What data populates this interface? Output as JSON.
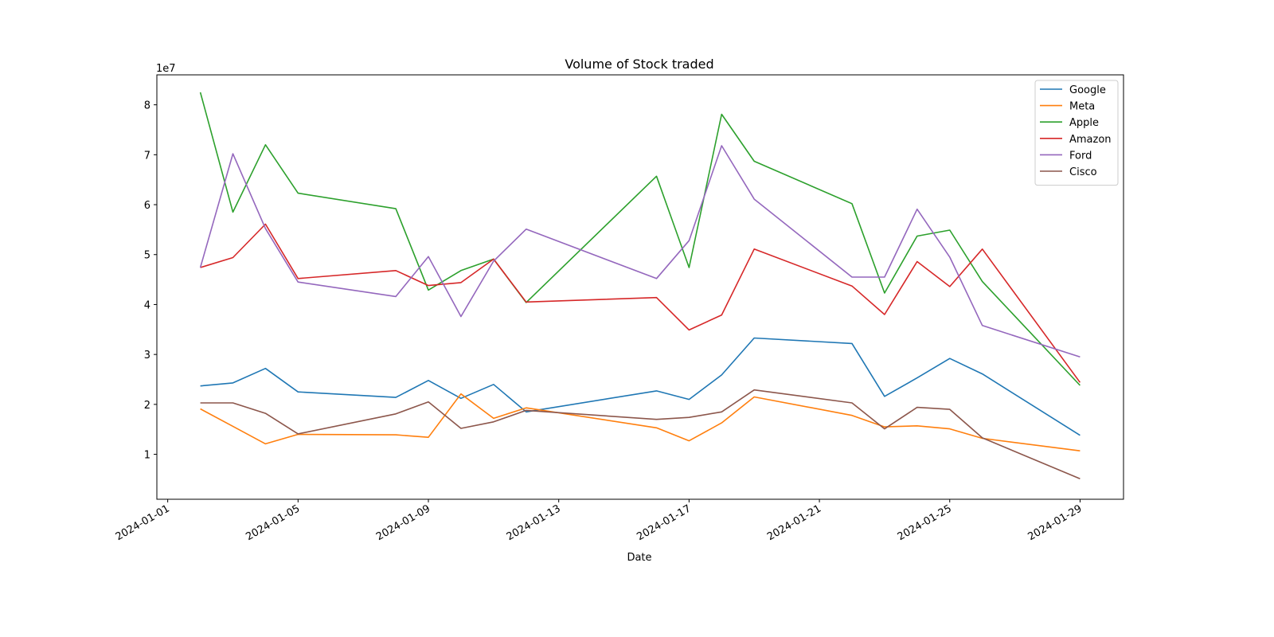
{
  "chart_data": {
    "type": "line",
    "title": "Volume of Stock traded",
    "xlabel": "Date",
    "ylabel": "",
    "y_scale_label": "1e7",
    "y_unit_multiplier": 10000000,
    "ylim": [
      1000000,
      86000000
    ],
    "xlim": [
      "2023-12-31T16:00",
      "2024-01-30T08:00"
    ],
    "x_ticks": [
      "2024-01-01",
      "2024-01-05",
      "2024-01-09",
      "2024-01-13",
      "2024-01-17",
      "2024-01-21",
      "2024-01-25",
      "2024-01-29"
    ],
    "y_ticks": [
      1,
      2,
      3,
      4,
      5,
      6,
      7,
      8
    ],
    "legend_position": "top-right",
    "grid": false,
    "x": [
      "2024-01-02",
      "2024-01-03",
      "2024-01-04",
      "2024-01-05",
      "2024-01-08",
      "2024-01-09",
      "2024-01-10",
      "2024-01-11",
      "2024-01-12",
      "2024-01-16",
      "2024-01-17",
      "2024-01-18",
      "2024-01-19",
      "2024-01-22",
      "2024-01-23",
      "2024-01-24",
      "2024-01-25",
      "2024-01-26",
      "2024-01-29"
    ],
    "series": [
      {
        "name": "Google",
        "color": "#1f77b4",
        "values": [
          23700000,
          24300000,
          27200000,
          22500000,
          21400000,
          24800000,
          21200000,
          24000000,
          18500000,
          22700000,
          21000000,
          25900000,
          33300000,
          32200000,
          21600000,
          25300000,
          29200000,
          26100000,
          13800000
        ]
      },
      {
        "name": "Meta",
        "color": "#ff7f0e",
        "values": [
          19100000,
          15600000,
          12100000,
          14000000,
          13900000,
          13400000,
          22100000,
          17200000,
          19300000,
          15300000,
          12700000,
          16300000,
          21500000,
          17800000,
          15500000,
          15700000,
          15100000,
          13200000,
          10700000
        ]
      },
      {
        "name": "Apple",
        "color": "#2ca02c",
        "values": [
          82500000,
          58500000,
          72000000,
          62300000,
          59200000,
          42900000,
          46800000,
          49100000,
          40400000,
          65700000,
          47400000,
          78100000,
          68700000,
          60200000,
          42300000,
          53700000,
          54900000,
          44600000,
          23800000
        ]
      },
      {
        "name": "Amazon",
        "color": "#d62728",
        "values": [
          47400000,
          49400000,
          56100000,
          45200000,
          46800000,
          43800000,
          44400000,
          49100000,
          40500000,
          41400000,
          34900000,
          37900000,
          51100000,
          43700000,
          38000000,
          48600000,
          43600000,
          51100000,
          24400000
        ]
      },
      {
        "name": "Ford",
        "color": "#9467bd",
        "values": [
          47400000,
          70200000,
          55200000,
          44500000,
          41600000,
          49600000,
          37600000,
          48700000,
          55100000,
          45200000,
          52800000,
          71800000,
          61100000,
          45500000,
          45500000,
          59100000,
          49500000,
          35800000,
          29500000
        ]
      },
      {
        "name": "Cisco",
        "color": "#8c564b",
        "values": [
          20300000,
          20300000,
          18200000,
          14100000,
          18100000,
          20500000,
          15200000,
          16500000,
          18800000,
          17000000,
          17400000,
          18500000,
          22900000,
          20300000,
          15100000,
          19400000,
          19000000,
          13300000,
          5100000
        ]
      }
    ]
  }
}
